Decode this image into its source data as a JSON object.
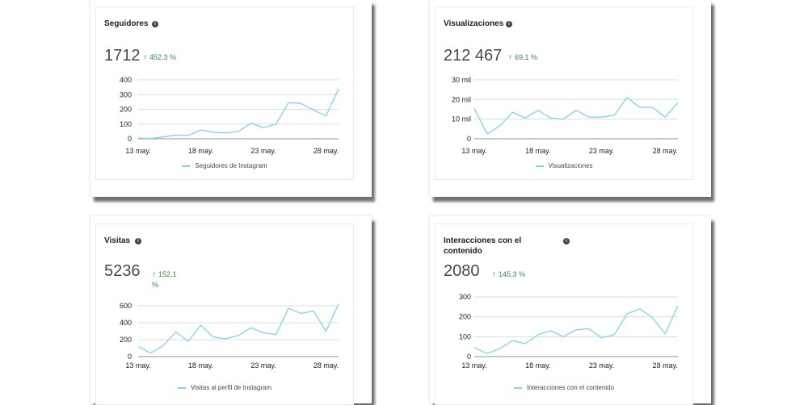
{
  "colors": {
    "line": "#7fd3f2",
    "grid": "#dadde1",
    "positive": "#2e8f4c"
  },
  "cards": [
    {
      "title": "Seguidores",
      "value": "1712",
      "change": "452,3 %",
      "legend": "Seguidores de Instagram",
      "chart_data": {
        "type": "line",
        "x_ticks": [
          "13 may.",
          "18 may.",
          "23 may.",
          "28 may."
        ],
        "y_ticks": [
          "0",
          "100",
          "200",
          "300",
          "400"
        ],
        "ylim": [
          0,
          400
        ],
        "series": [
          {
            "name": "Seguidores de Instagram",
            "values": [
              5,
              2,
              12,
              25,
              22,
              60,
              45,
              40,
              50,
              105,
              75,
              100,
              245,
              240,
              195,
              155,
              340
            ]
          }
        ]
      }
    },
    {
      "title": "Visualizaciones",
      "value": "212 467",
      "change": "69,1 %",
      "legend": "Visualizaciones",
      "chart_data": {
        "type": "line",
        "x_ticks": [
          "13 may.",
          "18 may.",
          "23 may.",
          "28 may."
        ],
        "y_ticks": [
          "0",
          "10 mil",
          "20 mil",
          "30 mil"
        ],
        "ylim": [
          0,
          30
        ],
        "series": [
          {
            "name": "Visualizaciones",
            "values": [
              15.5,
              2.5,
              6.5,
              13.5,
              10.5,
              14.5,
              10.5,
              10,
              14.5,
              11,
              11,
              12,
              21,
              16,
              16,
              11,
              18.5
            ]
          }
        ]
      }
    },
    {
      "title": "Visitas",
      "value": "5236",
      "change": "152,1 %",
      "legend": "Visitas al perfil de Instagram",
      "chart_data": {
        "type": "line",
        "x_ticks": [
          "13 may.",
          "18 may.",
          "23 may.",
          "28 may."
        ],
        "y_ticks": [
          "0",
          "200",
          "400",
          "600"
        ],
        "ylim": [
          0,
          600
        ],
        "series": [
          {
            "name": "Visitas al perfil de Instagram",
            "values": [
              120,
              40,
              130,
              290,
              180,
              370,
              230,
              210,
              250,
              340,
              280,
              260,
              570,
              510,
              540,
              300,
              620
            ]
          }
        ]
      }
    },
    {
      "title": "Interacciones con el contenido",
      "value": "2080",
      "change": "145,3 %",
      "legend": "Interacciones con el contenido",
      "chart_data": {
        "type": "line",
        "x_ticks": [
          "13 may.",
          "18 may.",
          "23 may.",
          "28 may."
        ],
        "y_ticks": [
          "0",
          "100",
          "200",
          "300"
        ],
        "ylim": [
          0,
          300
        ],
        "series": [
          {
            "name": "Interacciones con el contenido",
            "values": [
              45,
              15,
              40,
              80,
              65,
              110,
              130,
              100,
              135,
              140,
              95,
              110,
              215,
              240,
              195,
              115,
              255
            ]
          }
        ]
      }
    }
  ]
}
